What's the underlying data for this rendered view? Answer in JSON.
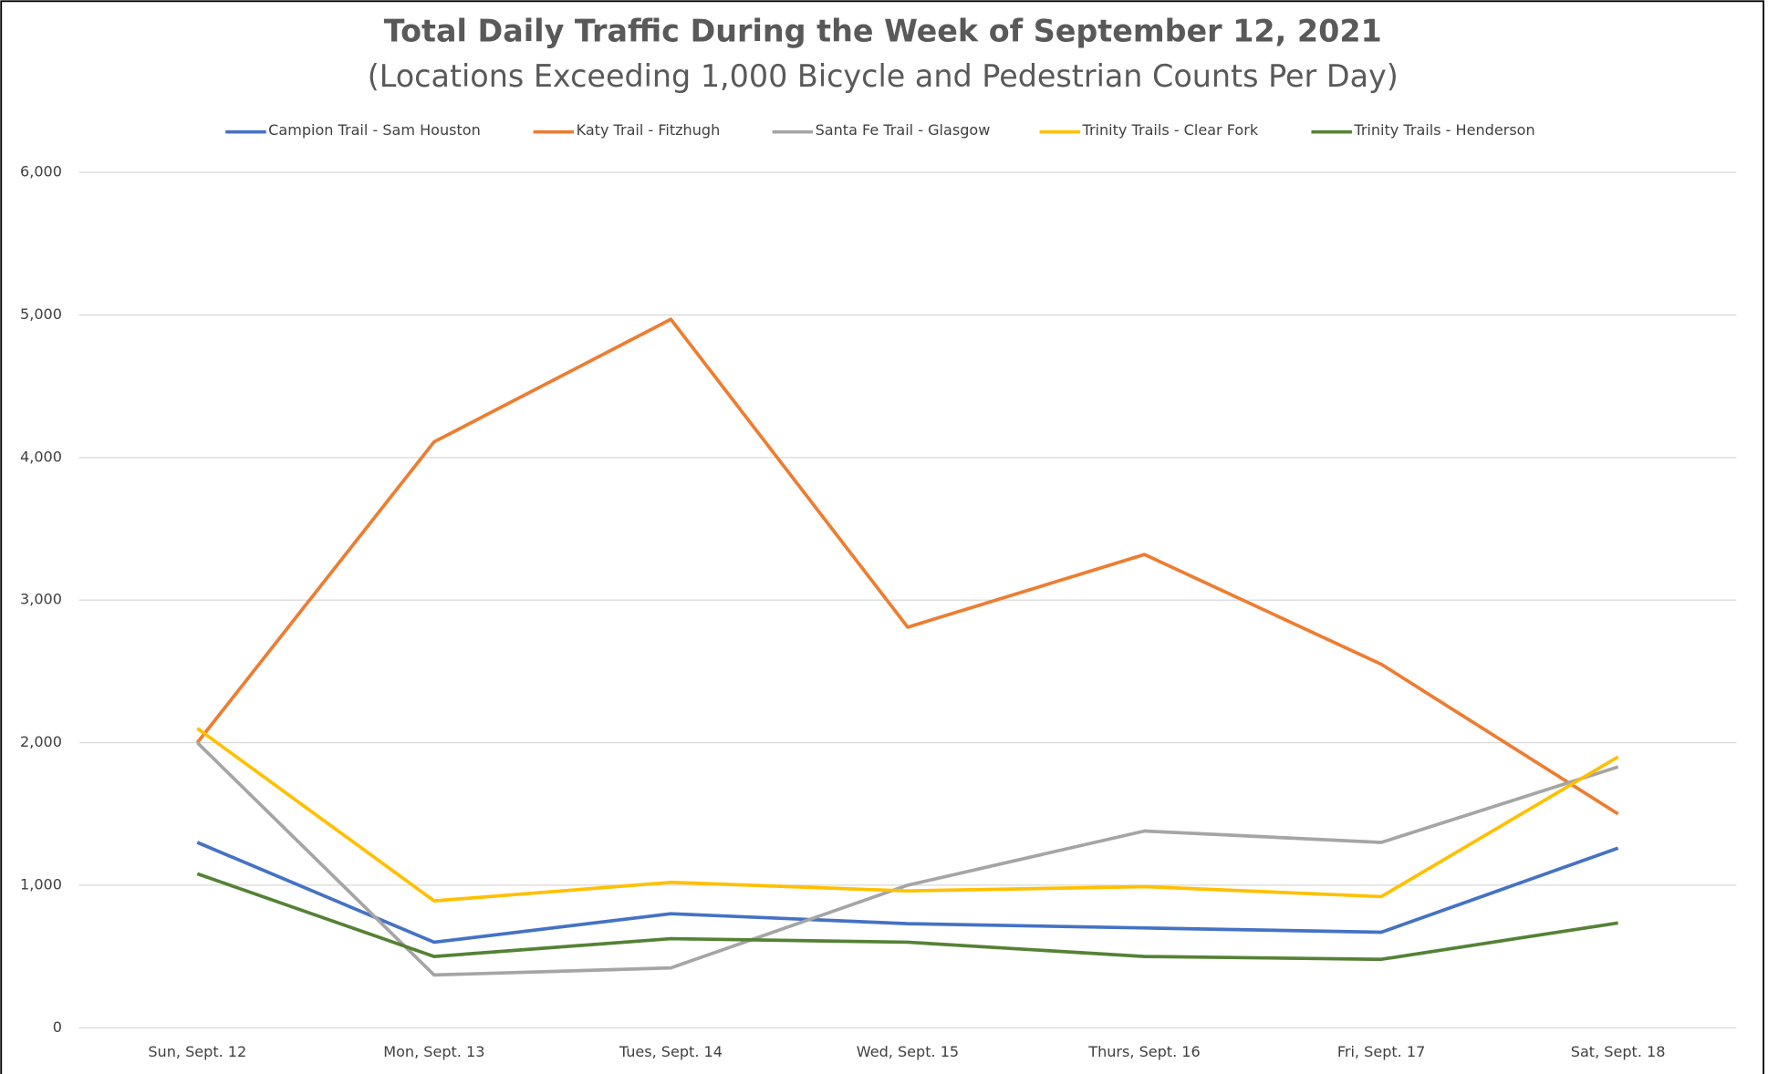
{
  "chart_data": {
    "type": "line",
    "title": "Total Daily Traffic During the Week of September 12, 2021",
    "subtitle": "(Locations Exceeding 1,000 Bicycle and Pedestrian Counts Per Day)",
    "categories": [
      "Sun, Sept. 12",
      "Mon, Sept. 13",
      "Tues, Sept. 14",
      "Wed, Sept. 15",
      "Thurs, Sept. 16",
      "Fri, Sept. 17",
      "Sat, Sept. 18"
    ],
    "series": [
      {
        "name": "Campion Trail - Sam Houston",
        "color": "#4472c4",
        "values": [
          1300,
          600,
          800,
          730,
          700,
          670,
          1260
        ]
      },
      {
        "name": "Katy Trail - Fitzhugh",
        "color": "#ed7d31",
        "values": [
          2000,
          4110,
          4970,
          2810,
          3320,
          2550,
          1500
        ]
      },
      {
        "name": "Santa Fe Trail - Glasgow",
        "color": "#a5a5a5",
        "values": [
          2000,
          370,
          420,
          1000,
          1380,
          1300,
          1830
        ]
      },
      {
        "name": "Trinity Trails - Clear Fork",
        "color": "#ffc000",
        "values": [
          2100,
          890,
          1020,
          960,
          990,
          920,
          1900
        ]
      },
      {
        "name": "Trinity Trails - Henderson",
        "color": "#548235",
        "values": [
          1080,
          500,
          625,
          600,
          500,
          480,
          735
        ]
      }
    ],
    "ylim": [
      0,
      6000
    ],
    "yticks": [
      0,
      {
        "value": 1000,
        "label": "1,000"
      },
      {
        "value": 2000,
        "label": "2,000"
      },
      {
        "value": 3000,
        "label": "3,000"
      },
      {
        "value": 4000,
        "label": "4,000"
      },
      {
        "value": 5000,
        "label": "5,000"
      },
      {
        "value": 6000,
        "label": "6,000"
      }
    ],
    "grid": true,
    "legend": "top"
  }
}
